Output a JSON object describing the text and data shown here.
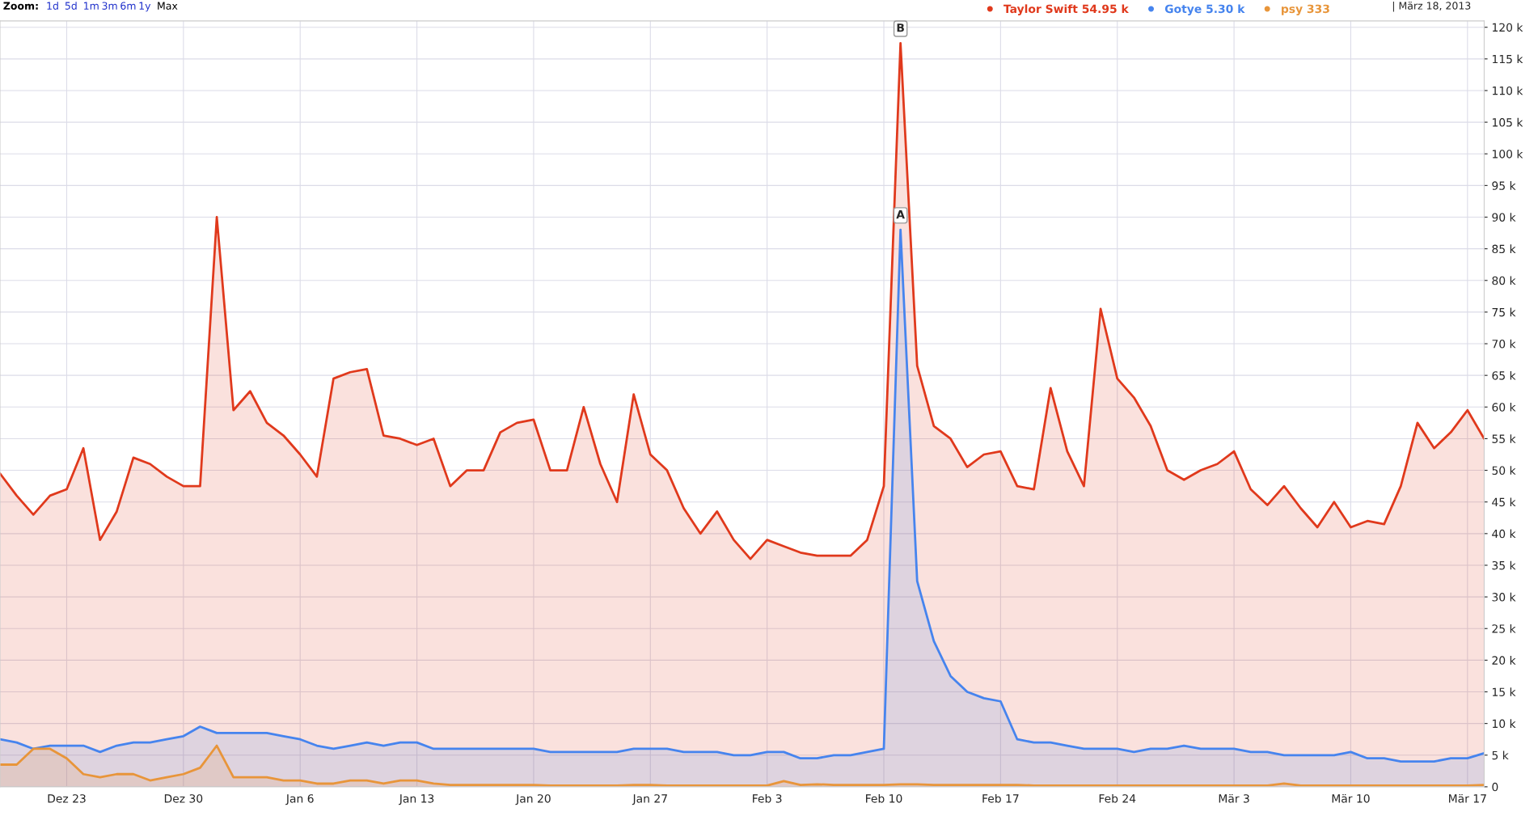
{
  "chart_data": {
    "type": "area",
    "annotations": [
      "Zoom:",
      "1d",
      "5d",
      "1m",
      "3m",
      "6m",
      "1y",
      "Max",
      "| März 18, 2013",
      {
        "text": "A",
        "x": "2013-02-11",
        "y": 88
      },
      {
        "text": "B",
        "x": "2013-02-11",
        "y": 117.5
      }
    ],
    "x": [
      "2012-12-19",
      "2012-12-20",
      "2012-12-21",
      "2012-12-22",
      "2012-12-23",
      "2012-12-24",
      "2012-12-25",
      "2012-12-26",
      "2012-12-27",
      "2012-12-28",
      "2012-12-29",
      "2012-12-30",
      "2012-12-31",
      "2013-01-01",
      "2013-01-02",
      "2013-01-03",
      "2013-01-04",
      "2013-01-05",
      "2013-01-06",
      "2013-01-07",
      "2013-01-08",
      "2013-01-09",
      "2013-01-10",
      "2013-01-11",
      "2013-01-12",
      "2013-01-13",
      "2013-01-14",
      "2013-01-15",
      "2013-01-16",
      "2013-01-17",
      "2013-01-18",
      "2013-01-19",
      "2013-01-20",
      "2013-01-21",
      "2013-01-22",
      "2013-01-23",
      "2013-01-24",
      "2013-01-25",
      "2013-01-26",
      "2013-01-27",
      "2013-01-28",
      "2013-01-29",
      "2013-01-30",
      "2013-01-31",
      "2013-02-01",
      "2013-02-02",
      "2013-02-03",
      "2013-02-04",
      "2013-02-05",
      "2013-02-06",
      "2013-02-07",
      "2013-02-08",
      "2013-02-09",
      "2013-02-10",
      "2013-02-11",
      "2013-02-12",
      "2013-02-13",
      "2013-02-14",
      "2013-02-15",
      "2013-02-16",
      "2013-02-17",
      "2013-02-18",
      "2013-02-19",
      "2013-02-20",
      "2013-02-21",
      "2013-02-22",
      "2013-02-23",
      "2013-02-24",
      "2013-02-25",
      "2013-02-26",
      "2013-02-27",
      "2013-02-28",
      "2013-03-01",
      "2013-03-02",
      "2013-03-03",
      "2013-03-04",
      "2013-03-05",
      "2013-03-06",
      "2013-03-07",
      "2013-03-08",
      "2013-03-09",
      "2013-03-10",
      "2013-03-11",
      "2013-03-12",
      "2013-03-13",
      "2013-03-14",
      "2013-03-15",
      "2013-03-16",
      "2013-03-17",
      "2013-03-18"
    ],
    "xlim": [
      "2012-12-19",
      "2013-03-18"
    ],
    "xticks": [
      {
        "value": "2012-12-23",
        "label": "Dez 23"
      },
      {
        "value": "2012-12-30",
        "label": "Dez 30"
      },
      {
        "value": "2013-01-06",
        "label": "Jan 6"
      },
      {
        "value": "2013-01-13",
        "label": "Jan 13"
      },
      {
        "value": "2013-01-20",
        "label": "Jan 20"
      },
      {
        "value": "2013-01-27",
        "label": "Jan 27"
      },
      {
        "value": "2013-02-03",
        "label": "Feb 3"
      },
      {
        "value": "2013-02-10",
        "label": "Feb 10"
      },
      {
        "value": "2013-02-17",
        "label": "Feb 17"
      },
      {
        "value": "2013-02-24",
        "label": "Feb 24"
      },
      {
        "value": "2013-03-03",
        "label": "Mär 3"
      },
      {
        "value": "2013-03-10",
        "label": "Mär 10"
      },
      {
        "value": "2013-03-17",
        "label": "Mär 17"
      }
    ],
    "ylim": [
      0,
      121
    ],
    "yticks": [
      {
        "value": 0,
        "label": "0"
      },
      {
        "value": 5,
        "label": "5 k"
      },
      {
        "value": 10,
        "label": "10 k"
      },
      {
        "value": 15,
        "label": "15 k"
      },
      {
        "value": 20,
        "label": "20 k"
      },
      {
        "value": 25,
        "label": "25 k"
      },
      {
        "value": 30,
        "label": "30 k"
      },
      {
        "value": 35,
        "label": "35 k"
      },
      {
        "value": 40,
        "label": "40 k"
      },
      {
        "value": 45,
        "label": "45 k"
      },
      {
        "value": 50,
        "label": "50 k"
      },
      {
        "value": 55,
        "label": "55 k"
      },
      {
        "value": 60,
        "label": "60 k"
      },
      {
        "value": 65,
        "label": "65 k"
      },
      {
        "value": 70,
        "label": "70 k"
      },
      {
        "value": 75,
        "label": "75 k"
      },
      {
        "value": 80,
        "label": "80 k"
      },
      {
        "value": 85,
        "label": "85 k"
      },
      {
        "value": 90,
        "label": "90 k"
      },
      {
        "value": 95,
        "label": "95 k"
      },
      {
        "value": 100,
        "label": "100 k"
      },
      {
        "value": 105,
        "label": "105 k"
      },
      {
        "value": 110,
        "label": "110 k"
      },
      {
        "value": 115,
        "label": "115 k"
      },
      {
        "value": 120,
        "label": "120 k"
      }
    ],
    "grid": true,
    "legend": "top right",
    "series": [
      {
        "name": "Taylor Swift 54.95 k",
        "color": "#e0391c",
        "values": [
          49.5,
          46,
          43,
          46,
          47,
          53.5,
          39,
          43.5,
          52,
          51,
          49,
          47.5,
          47.5,
          90,
          59.5,
          62.5,
          57.5,
          55.5,
          52.5,
          49,
          64.5,
          65.5,
          66,
          55.5,
          55,
          54,
          55,
          47.5,
          50,
          50,
          56,
          57.5,
          58,
          50,
          50,
          60,
          51,
          45,
          62,
          52.5,
          50,
          44,
          40,
          43.5,
          39,
          36,
          39,
          38,
          37,
          36.5,
          36.5,
          36.5,
          39,
          47.5,
          117.5,
          66.5,
          57,
          55,
          50.5,
          52.5,
          53,
          47.5,
          47,
          63,
          53,
          47.5,
          75.5,
          64.5,
          61.5,
          57,
          50,
          48.5,
          50,
          51,
          53,
          47,
          44.5,
          47.5,
          44,
          41,
          45,
          41,
          42,
          41.5,
          47.5,
          57.5,
          53.5,
          56,
          59.5,
          55
        ]
      },
      {
        "name": "Gotye 5.30 k",
        "color": "#4684ee",
        "values": [
          7.5,
          7,
          6,
          6.5,
          6.5,
          6.5,
          5.5,
          6.5,
          7,
          7,
          7.5,
          8,
          9.5,
          8.5,
          8.5,
          8.5,
          8.5,
          8,
          7.5,
          6.5,
          6,
          6.5,
          7,
          6.5,
          7,
          7,
          6,
          6,
          6,
          6,
          6,
          6,
          6,
          5.5,
          5.5,
          5.5,
          5.5,
          5.5,
          6,
          6,
          6,
          5.5,
          5.5,
          5.5,
          5,
          5,
          5.5,
          5.5,
          4.5,
          4.5,
          5,
          5,
          5.5,
          6,
          88,
          32.5,
          23,
          17.5,
          15,
          14,
          13.5,
          7.5,
          7,
          7,
          6.5,
          6,
          6,
          6,
          5.5,
          6,
          6,
          6.5,
          6,
          6,
          6,
          5.5,
          5.5,
          5,
          5,
          5,
          5,
          5.5,
          4.5,
          4.5,
          4,
          4,
          4,
          4.5,
          4.5,
          5.3
        ]
      },
      {
        "name": "psy 333",
        "color": "#e8953a",
        "values": [
          3.5,
          3.5,
          6,
          6,
          4.5,
          2,
          1.5,
          2,
          2,
          1,
          1.5,
          2,
          3,
          6.5,
          1.5,
          1.5,
          1.5,
          1,
          1,
          0.5,
          0.5,
          1,
          1,
          0.5,
          1,
          1,
          0.5,
          0.3,
          0.3,
          0.3,
          0.3,
          0.3,
          0.3,
          0.2,
          0.2,
          0.2,
          0.2,
          0.2,
          0.3,
          0.3,
          0.2,
          0.2,
          0.2,
          0.2,
          0.2,
          0.2,
          0.2,
          0.9,
          0.3,
          0.4,
          0.3,
          0.3,
          0.3,
          0.3,
          0.4,
          0.4,
          0.3,
          0.3,
          0.3,
          0.3,
          0.3,
          0.3,
          0.2,
          0.2,
          0.2,
          0.2,
          0.2,
          0.2,
          0.2,
          0.2,
          0.2,
          0.2,
          0.2,
          0.2,
          0.2,
          0.2,
          0.2,
          0.5,
          0.2,
          0.2,
          0.2,
          0.2,
          0.2,
          0.2,
          0.2,
          0.2,
          0.2,
          0.2,
          0.2,
          0.3
        ]
      }
    ]
  }
}
